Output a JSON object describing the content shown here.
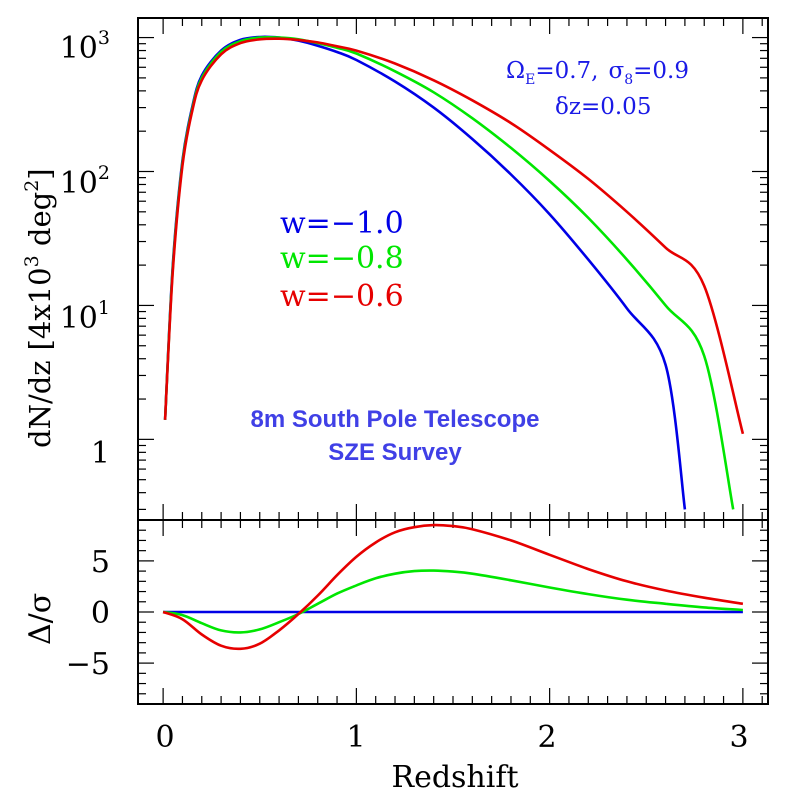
{
  "chart_data": [
    {
      "type": "line",
      "ylabel_main": "dN/dz",
      "ylabel_units": "[4x10",
      "ylabel_units_sup": "3",
      "ylabel_units_end": " deg",
      "ylabel_units_sup2": "2",
      "ylabel_units_close": "]",
      "y_scale": "log",
      "xlim": [
        -0.13,
        3.13
      ],
      "ylim": [
        0.25,
        1400
      ],
      "y_ticks": [
        {
          "value": 1000,
          "base": "10",
          "exp": "3"
        },
        {
          "value": 100,
          "base": "10",
          "exp": "2"
        },
        {
          "value": 10,
          "base": "10",
          "exp": "1"
        },
        {
          "value": 1,
          "base": "1",
          "exp": ""
        }
      ],
      "annotation_params": {
        "omega": "Ω",
        "omega_sub": "E",
        "omega_val": "=0.7,",
        "sigma": "σ",
        "sigma_sub": "8",
        "sigma_val": "=0.9"
      },
      "annotation_dz": "δz=0.05",
      "annotation_title_1": "8m South Pole Telescope",
      "annotation_title_2": "SZE Survey",
      "series": [
        {
          "name": "w=−1.0",
          "color": "#0000e6",
          "x": [
            0.01,
            0.05,
            0.1,
            0.15,
            0.2,
            0.3,
            0.4,
            0.5,
            0.6,
            0.7,
            0.8,
            0.9,
            1.0,
            1.2,
            1.4,
            1.6,
            1.8,
            2.0,
            2.2,
            2.4,
            2.6,
            2.7
          ],
          "y": [
            1.4,
            20,
            120,
            300,
            520,
            800,
            960,
            1010,
            1000,
            950,
            870,
            780,
            680,
            470,
            300,
            175,
            95,
            48,
            22,
            9.5,
            3.6,
            0.3
          ]
        },
        {
          "name": "w=−0.8",
          "color": "#00e600",
          "x": [
            0.01,
            0.05,
            0.1,
            0.15,
            0.2,
            0.3,
            0.4,
            0.5,
            0.6,
            0.7,
            0.8,
            0.9,
            1.0,
            1.2,
            1.4,
            1.6,
            1.8,
            2.0,
            2.2,
            2.4,
            2.6,
            2.8,
            2.95
          ],
          "y": [
            1.4,
            19,
            115,
            290,
            500,
            780,
            940,
            1000,
            1000,
            970,
            910,
            840,
            760,
            560,
            390,
            250,
            150,
            85,
            45,
            22,
            10,
            4.2,
            0.3
          ]
        },
        {
          "name": "w=−0.6",
          "color": "#e60000",
          "x": [
            0.01,
            0.05,
            0.1,
            0.15,
            0.2,
            0.3,
            0.4,
            0.5,
            0.6,
            0.7,
            0.8,
            0.9,
            1.0,
            1.2,
            1.4,
            1.6,
            1.8,
            2.0,
            2.2,
            2.4,
            2.6,
            2.8,
            3.0
          ],
          "y": [
            1.4,
            18,
            110,
            280,
            480,
            750,
            910,
            970,
            980,
            960,
            920,
            860,
            800,
            640,
            480,
            340,
            230,
            145,
            88,
            50,
            27,
            14,
            1.1
          ]
        }
      ]
    },
    {
      "type": "line",
      "ylabel": "Δ/σ",
      "xlabel": "Redshift",
      "xlim": [
        -0.13,
        3.13
      ],
      "ylim": [
        -9,
        9
      ],
      "x_ticks": [
        "0",
        "1",
        "2",
        "3"
      ],
      "y_ticks": [
        "5",
        "0",
        "−5"
      ],
      "series": [
        {
          "name": "w=−1.0",
          "color": "#0000e6",
          "x": [
            0.0,
            3.0
          ],
          "y": [
            0,
            0
          ]
        },
        {
          "name": "w=−0.8",
          "color": "#00e600",
          "x": [
            0.0,
            0.1,
            0.2,
            0.3,
            0.4,
            0.5,
            0.6,
            0.7,
            0.8,
            0.9,
            1.0,
            1.1,
            1.2,
            1.3,
            1.4,
            1.5,
            1.6,
            1.8,
            2.0,
            2.2,
            2.4,
            2.6,
            2.8,
            3.0
          ],
          "y": [
            0,
            -0.3,
            -1.1,
            -1.8,
            -2.0,
            -1.7,
            -1.0,
            -0.2,
            0.8,
            1.8,
            2.6,
            3.3,
            3.75,
            4.0,
            4.05,
            3.95,
            3.75,
            3.1,
            2.4,
            1.75,
            1.2,
            0.8,
            0.45,
            0.2
          ]
        },
        {
          "name": "w=−0.6",
          "color": "#e60000",
          "x": [
            0.0,
            0.1,
            0.2,
            0.3,
            0.4,
            0.5,
            0.6,
            0.7,
            0.8,
            0.9,
            1.0,
            1.1,
            1.2,
            1.3,
            1.4,
            1.5,
            1.6,
            1.8,
            2.0,
            2.2,
            2.4,
            2.6,
            2.8,
            3.0
          ],
          "y": [
            0,
            -0.7,
            -2.2,
            -3.3,
            -3.6,
            -3.1,
            -1.8,
            -0.2,
            1.6,
            3.6,
            5.4,
            6.8,
            7.8,
            8.3,
            8.5,
            8.4,
            8.1,
            7.0,
            5.6,
            4.2,
            3.0,
            2.1,
            1.4,
            0.8
          ]
        }
      ]
    }
  ]
}
